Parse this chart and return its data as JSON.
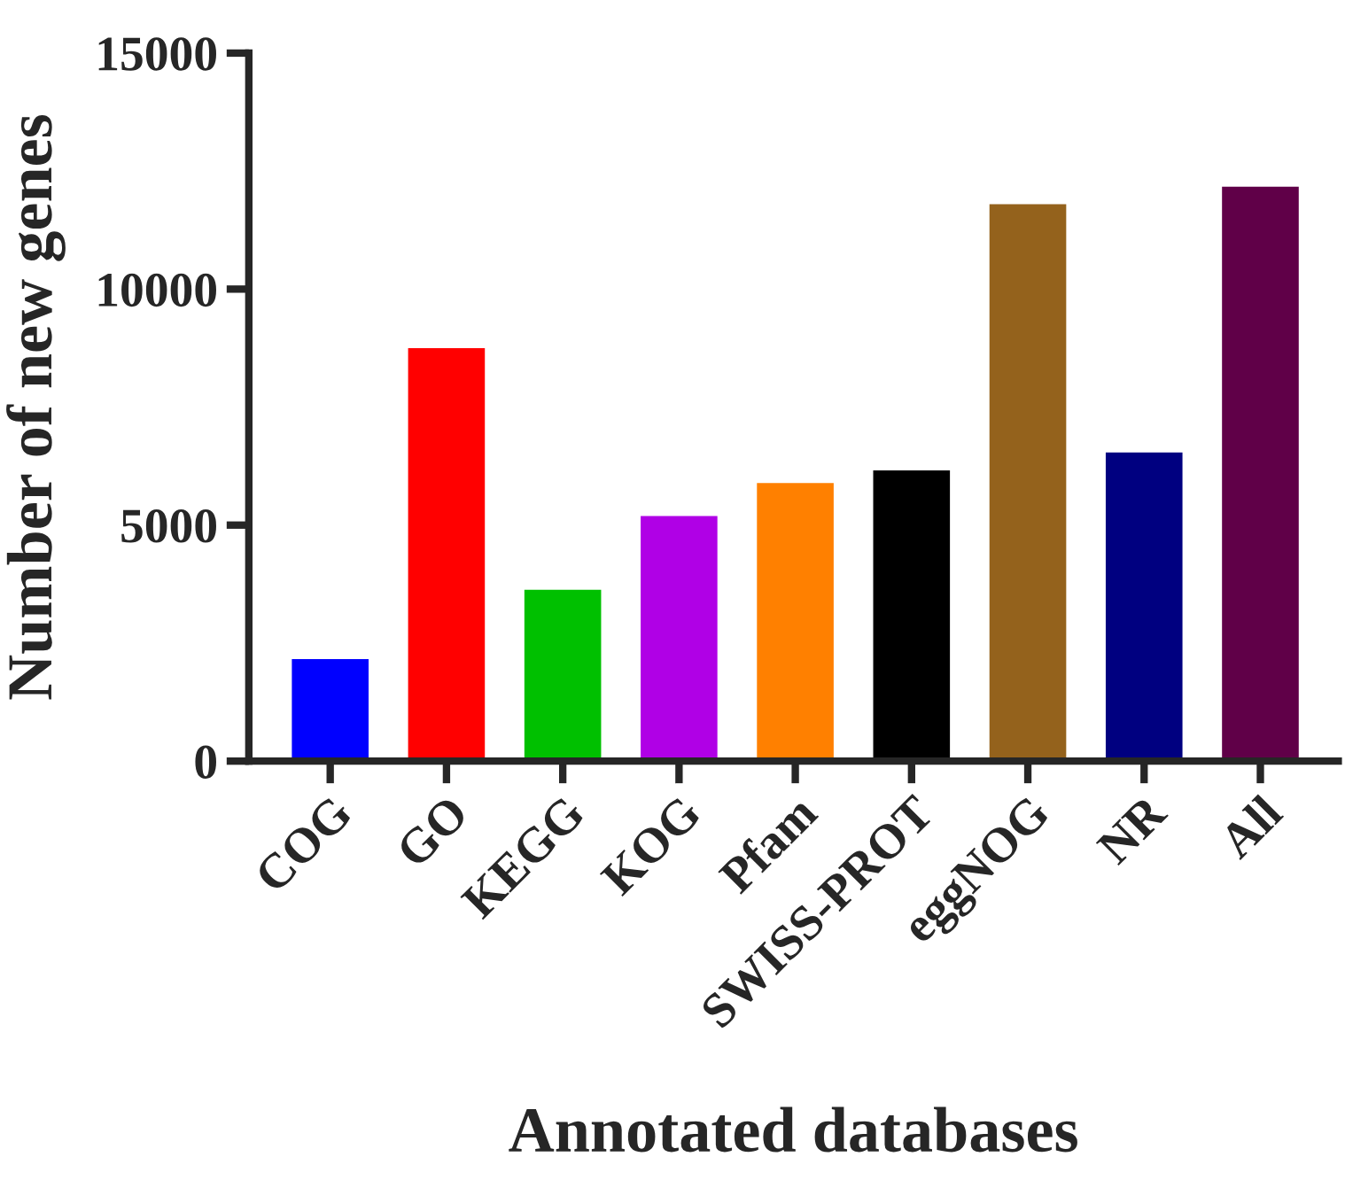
{
  "chart_data": {
    "type": "bar",
    "xlabel": "Annotated databases",
    "ylabel": "Number of new genes",
    "categories": [
      "COG",
      "GO",
      "KEGG",
      "KOG",
      "Pfam",
      "SWISS-PROT",
      "eggNOG",
      "NR",
      "All"
    ],
    "values": [
      2160,
      8750,
      3630,
      5190,
      5890,
      6160,
      11800,
      6540,
      12170
    ],
    "colors": [
      "#0000ff",
      "#ff0000",
      "#00c000",
      "#b000e6",
      "#ff8000",
      "#000000",
      "#94621c",
      "#000080",
      "#600048"
    ],
    "ylim": [
      0,
      15000
    ],
    "yticks": [
      0,
      5000,
      10000,
      15000
    ],
    "grid": false,
    "legend": false
  }
}
